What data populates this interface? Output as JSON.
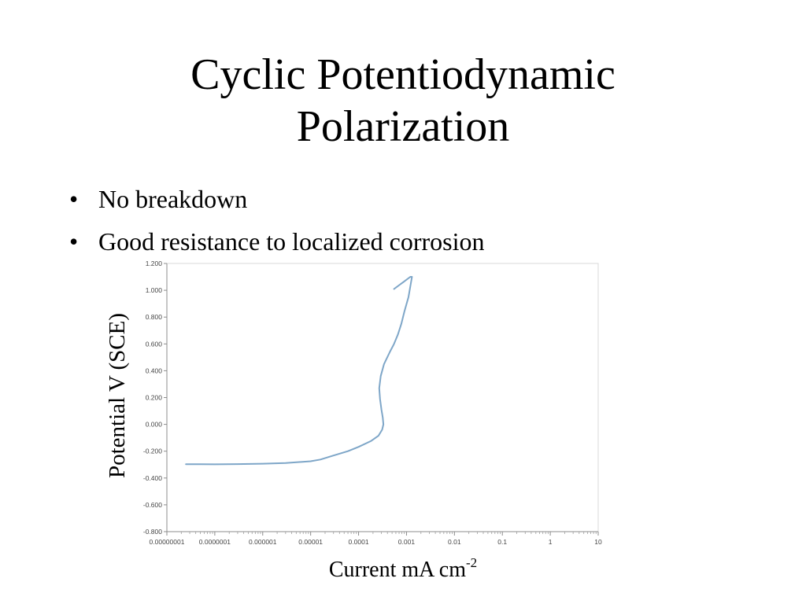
{
  "slide": {
    "title_line1": "Cyclic Potentiodynamic",
    "title_line2": "Polarization",
    "bullets": [
      "No breakdown",
      "Good resistance to localized corrosion"
    ],
    "bullet_glyph": "•"
  },
  "chart_data": {
    "type": "line",
    "title": "",
    "ylabel": "Potential V (SCE)",
    "xlabel_base": "Current mA cm",
    "xlabel_exponent": "-2",
    "x_scale": "log",
    "xlim": [
      1e-08,
      10
    ],
    "ylim": [
      -0.8,
      1.2
    ],
    "x_ticks": [
      1e-08,
      1e-07,
      1e-06,
      1e-05,
      0.0001,
      0.001,
      0.01,
      0.1,
      1,
      10
    ],
    "x_tick_labels": [
      "0.00000001",
      "0.0000001",
      "0.000001",
      "0.00001",
      "0.0001",
      "0.001",
      "0.01",
      "0.1",
      "1",
      "10"
    ],
    "y_ticks": [
      -0.8,
      -0.6,
      -0.4,
      -0.2,
      0,
      0.2,
      0.4,
      0.6,
      0.8,
      1.0,
      1.2
    ],
    "y_tick_labels": [
      "-0.800",
      "-0.600",
      "-0.400",
      "-0.200",
      "0.000",
      "0.200",
      "0.400",
      "0.600",
      "0.800",
      "1.000",
      "1.200"
    ],
    "grid": false,
    "series_color": "#7ea6c8",
    "series": [
      {
        "name": "",
        "x": [
          2.5e-08,
          5e-08,
          1e-07,
          3e-07,
          1e-06,
          3e-06,
          1e-05,
          1.6e-05,
          3e-05,
          6e-05,
          0.0001,
          0.00018,
          0.00026,
          0.00031,
          0.00033,
          0.00032,
          0.0003,
          0.00028,
          0.00027,
          0.00029,
          0.00034,
          0.00045,
          0.00055,
          0.00066,
          0.00078,
          0.0009,
          0.0011,
          0.0013,
          0.0012,
          0.00085,
          0.00055
        ],
        "y": [
          -0.297,
          -0.297,
          -0.298,
          -0.296,
          -0.293,
          -0.288,
          -0.275,
          -0.262,
          -0.232,
          -0.2,
          -0.168,
          -0.125,
          -0.085,
          -0.04,
          0,
          0.05,
          0.11,
          0.19,
          0.27,
          0.36,
          0.45,
          0.54,
          0.6,
          0.67,
          0.75,
          0.84,
          0.95,
          1.1,
          1.1,
          1.06,
          1.01
        ]
      }
    ]
  }
}
